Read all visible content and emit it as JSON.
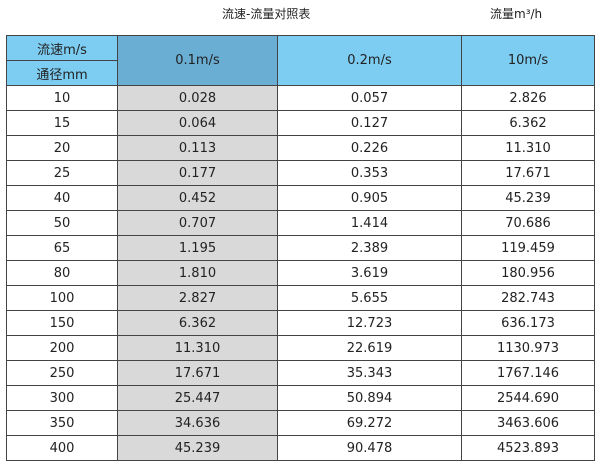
{
  "title": "流速-流量对照表",
  "unit": "流量m³/h",
  "header": {
    "velocity_label": "流速m/s",
    "diameter_label": "通径mm",
    "cols": [
      "0.1m/s",
      "0.2m/s",
      "10m/s"
    ]
  },
  "colors": {
    "header": "#7dcdf3",
    "header_highlight": "#6aaed4",
    "column_highlight": "#d9d9d9"
  },
  "rows": [
    [
      "10",
      "0.028",
      "0.057",
      "2.826"
    ],
    [
      "15",
      "0.064",
      "0.127",
      "6.362"
    ],
    [
      "20",
      "0.113",
      "0.226",
      "11.310"
    ],
    [
      "25",
      "0.177",
      "0.353",
      "17.671"
    ],
    [
      "40",
      "0.452",
      "0.905",
      "45.239"
    ],
    [
      "50",
      "0.707",
      "1.414",
      "70.686"
    ],
    [
      "65",
      "1.195",
      "2.389",
      "119.459"
    ],
    [
      "80",
      "1.810",
      "3.619",
      "180.956"
    ],
    [
      "100",
      "2.827",
      "5.655",
      "282.743"
    ],
    [
      "150",
      "6.362",
      "12.723",
      "636.173"
    ],
    [
      "200",
      "11.310",
      "22.619",
      "1130.973"
    ],
    [
      "250",
      "17.671",
      "35.343",
      "1767.146"
    ],
    [
      "300",
      "25.447",
      "50.894",
      "2544.690"
    ],
    [
      "350",
      "34.636",
      "69.272",
      "3463.606"
    ],
    [
      "400",
      "45.239",
      "90.478",
      "4523.893"
    ]
  ]
}
